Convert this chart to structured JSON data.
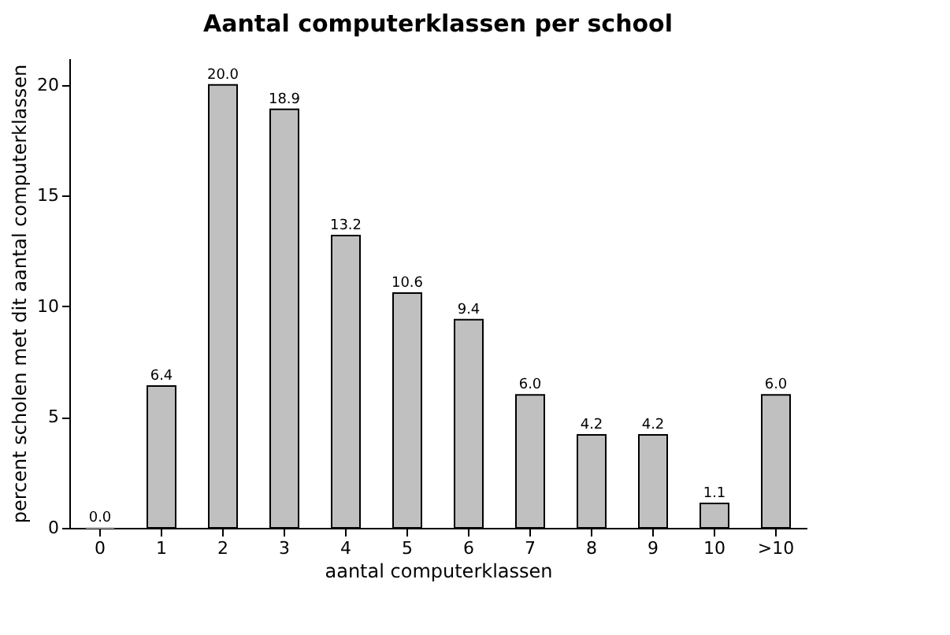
{
  "chart_data": {
    "type": "bar",
    "title": "Aantal computerklassen per school",
    "xlabel": "aantal computerklassen",
    "ylabel": "percent scholen met dit aantal computerklassen",
    "categories": [
      "0",
      "1",
      "2",
      "3",
      "4",
      "5",
      "6",
      "7",
      "8",
      "9",
      "10",
      ">10"
    ],
    "values": [
      0.0,
      6.4,
      20.0,
      18.9,
      13.2,
      10.6,
      9.4,
      6.0,
      4.2,
      4.2,
      1.1,
      6.0
    ],
    "value_labels": [
      "0.0",
      "6.4",
      "20.0",
      "18.9",
      "13.2",
      "10.6",
      "9.4",
      "6.0",
      "4.2",
      "4.2",
      "1.1",
      "6.0"
    ],
    "color": "#c0c0c0",
    "ylim": [
      0,
      21.2
    ],
    "yticks": [
      0,
      5,
      10,
      15,
      20
    ],
    "grid": false
  }
}
